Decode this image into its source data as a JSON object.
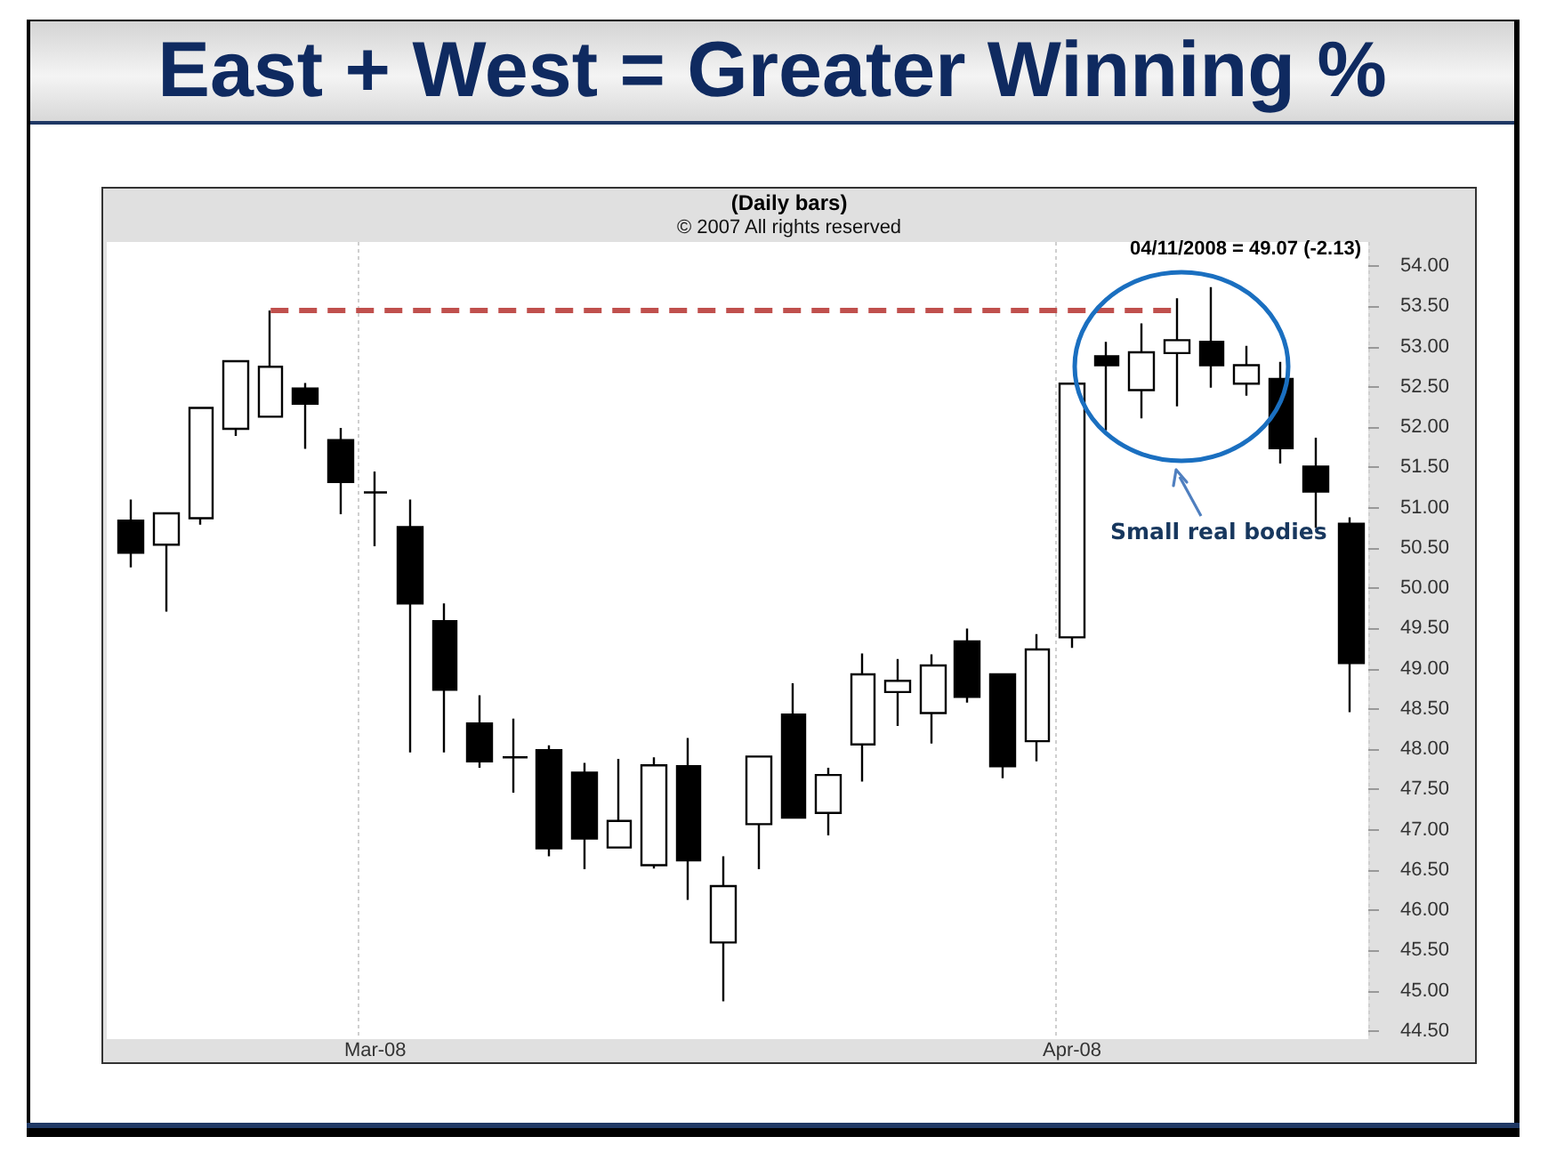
{
  "chart_data": {
    "type": "candlestick",
    "title": "East + West = Greater Winning %",
    "subtitle": "(Daily bars)",
    "annotations": [
      "© 2007 All rights reserved",
      "04/11/2008 = 49.07 (-2.13)",
      "Small real bodies"
    ],
    "categories": [
      null,
      null,
      null,
      null,
      null,
      null,
      null,
      "Mar-08",
      null,
      null,
      null,
      null,
      null,
      null,
      null,
      null,
      null,
      null,
      null,
      null,
      null,
      null,
      null,
      null,
      null,
      null,
      null,
      "Apr-08",
      null,
      null,
      null,
      null,
      null,
      null,
      null,
      null
    ],
    "ohlc": [
      [
        50.84,
        51.1,
        50.26,
        50.44
      ],
      [
        50.54,
        50.93,
        49.71,
        50.93
      ],
      [
        50.87,
        52.24,
        50.79,
        52.24
      ],
      [
        51.98,
        52.82,
        51.89,
        52.82
      ],
      [
        52.13,
        53.45,
        52.13,
        52.75
      ],
      [
        52.48,
        52.55,
        51.73,
        52.29
      ],
      [
        51.84,
        51.99,
        50.92,
        51.32
      ],
      [
        51.19,
        51.45,
        50.52,
        51.19
      ],
      [
        50.76,
        51.1,
        47.96,
        49.81
      ],
      [
        49.59,
        49.81,
        47.96,
        48.74
      ],
      [
        48.32,
        48.67,
        47.77,
        47.85
      ],
      [
        47.9,
        48.38,
        47.46,
        47.9
      ],
      [
        47.99,
        48.05,
        46.67,
        46.77
      ],
      [
        47.71,
        47.83,
        46.51,
        46.89
      ],
      [
        46.78,
        47.88,
        46.78,
        47.11
      ],
      [
        46.56,
        47.9,
        46.52,
        47.8
      ],
      [
        47.79,
        48.14,
        46.13,
        46.62
      ],
      [
        45.6,
        46.67,
        44.87,
        46.3
      ],
      [
        47.07,
        47.91,
        46.51,
        47.91
      ],
      [
        48.43,
        48.82,
        47.15,
        47.15
      ],
      [
        47.21,
        47.77,
        46.93,
        47.68
      ],
      [
        48.06,
        49.19,
        47.6,
        48.93
      ],
      [
        48.71,
        49.12,
        48.29,
        48.85
      ],
      [
        48.45,
        49.18,
        48.07,
        49.04
      ],
      [
        49.34,
        49.5,
        48.58,
        48.65
      ],
      [
        48.93,
        48.93,
        47.64,
        47.79
      ],
      [
        48.1,
        49.43,
        47.85,
        49.24
      ],
      [
        49.39,
        52.54,
        49.26,
        52.54
      ],
      [
        52.88,
        53.06,
        51.96,
        52.77
      ],
      [
        52.46,
        53.29,
        52.11,
        52.93
      ],
      [
        52.92,
        53.6,
        52.26,
        53.08
      ],
      [
        53.06,
        53.74,
        52.49,
        52.77
      ],
      [
        52.54,
        53.01,
        52.39,
        52.77
      ],
      [
        52.6,
        52.81,
        51.55,
        51.74
      ],
      [
        51.51,
        51.87,
        50.75,
        51.2
      ],
      [
        50.8,
        50.88,
        48.46,
        49.07
      ]
    ],
    "colors": [
      "#000000",
      "#ffffff",
      "#ffffff",
      "#ffffff",
      "#ffffff",
      "#000000",
      "#000000",
      "#000000",
      "#000000",
      "#000000",
      "#000000",
      "#000000",
      "#000000",
      "#000000",
      "#ffffff",
      "#ffffff",
      "#000000",
      "#ffffff",
      "#ffffff",
      "#000000",
      "#ffffff",
      "#ffffff",
      "#ffffff",
      "#ffffff",
      "#000000",
      "#000000",
      "#ffffff",
      "#ffffff",
      "#000000",
      "#ffffff",
      "#ffffff",
      "#000000",
      "#ffffff",
      "#000000",
      "#000000",
      "#000000"
    ],
    "ylim": [
      44.4,
      54.3
    ],
    "yticks": [
      {
        "value": 44.5,
        "label": "44.50"
      },
      {
        "value": 45,
        "label": "45.00"
      },
      {
        "value": 45.5,
        "label": "45.50"
      },
      {
        "value": 46,
        "label": "46.00"
      },
      {
        "value": 46.5,
        "label": "46.50"
      },
      {
        "value": 47,
        "label": "47.00"
      },
      {
        "value": 47.5,
        "label": "47.50"
      },
      {
        "value": 48,
        "label": "48.00"
      },
      {
        "value": 48.5,
        "label": "48.50"
      },
      {
        "value": 49,
        "label": "49.00"
      },
      {
        "value": 49.5,
        "label": "49.50"
      },
      {
        "value": 50,
        "label": "50.00"
      },
      {
        "value": 50.5,
        "label": "50.50"
      },
      {
        "value": 51,
        "label": "51.00"
      },
      {
        "value": 51.5,
        "label": "51.50"
      },
      {
        "value": 52,
        "label": "52.00"
      },
      {
        "value": 52.5,
        "label": "52.50"
      },
      {
        "value": 53,
        "label": "53.00"
      },
      {
        "value": 53.5,
        "label": "53.50"
      },
      {
        "value": 54,
        "label": "54.00"
      }
    ],
    "ref_lines": [
      {
        "axis": "y",
        "value": 53.45,
        "color": "#c0504d",
        "line_style": "dashed"
      }
    ],
    "grid": "x"
  }
}
